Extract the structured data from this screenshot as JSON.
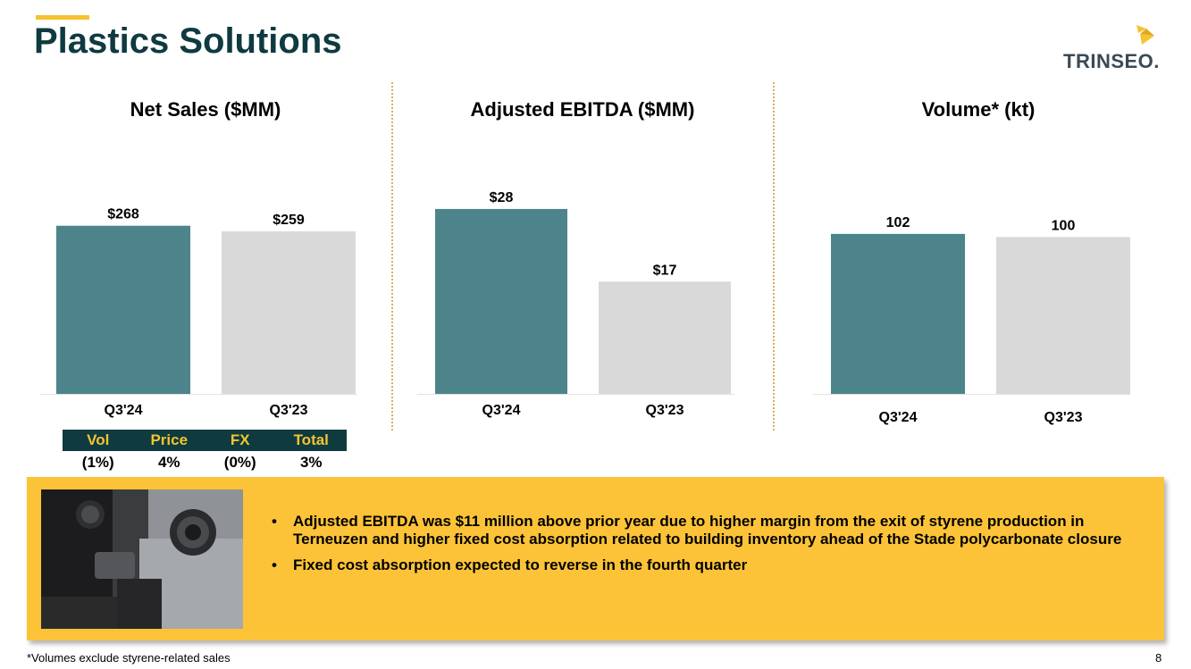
{
  "title": "Plastics Solutions",
  "logo_text": "TRINSEO.",
  "colors": {
    "current": "#4d848b",
    "prior": "#d9d9d9",
    "accent": "#f5c330",
    "dark": "#0e3a40",
    "callout": "#fcc338"
  },
  "chart_data": [
    {
      "type": "bar",
      "title": "Net Sales ($MM)",
      "categories": [
        "Q3'24",
        "Q3'23"
      ],
      "values": [
        268,
        259
      ],
      "labels": [
        "$268",
        "$259"
      ],
      "ylim": [
        0,
        400
      ]
    },
    {
      "type": "bar",
      "title": "Adjusted EBITDA ($MM)",
      "categories": [
        "Q3'24",
        "Q3'23"
      ],
      "values": [
        28,
        17
      ],
      "labels": [
        "$28",
        "$17"
      ],
      "ylim": [
        0,
        38
      ]
    },
    {
      "type": "bar",
      "title": "Volume* (kt)",
      "categories": [
        "Q3'24",
        "Q3'23"
      ],
      "values": [
        102,
        100
      ],
      "labels": [
        "102",
        "100"
      ],
      "ylim": [
        0,
        160
      ]
    }
  ],
  "bridge": {
    "headers": [
      "Vol",
      "Price",
      "FX",
      "Total"
    ],
    "values": [
      "(1%)",
      "4%",
      "(0%)",
      "3%"
    ]
  },
  "callout": {
    "image_icon": "car-interior-photo",
    "bullets": [
      "Adjusted EBITDA was $11 million above prior year due to higher margin from the exit of styrene production in Terneuzen and higher fixed cost absorption related to building inventory ahead of the Stade polycarbonate closure",
      "Fixed cost absorption expected to reverse in the fourth quarter"
    ]
  },
  "footnote": "*Volumes exclude styrene-related sales",
  "page_number": "8"
}
